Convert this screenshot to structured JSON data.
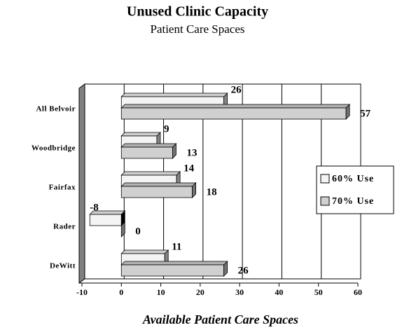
{
  "chart_data": {
    "type": "bar",
    "orientation": "horizontal",
    "style": "3d",
    "title": "Unused Clinic Capacity",
    "subtitle": "Patient Care Spaces",
    "x_label": "Available Patient Care Spaces",
    "categories": [
      "All Belvoir",
      "Woodbridge",
      "Fairfax",
      "Rader",
      "DeWitt"
    ],
    "series": [
      {
        "name": "60% Use",
        "color": "#f4f4f4",
        "values": [
          26,
          9,
          14,
          -8,
          11
        ]
      },
      {
        "name": "70% Use",
        "color": "#d0d0d0",
        "values": [
          57,
          13,
          18,
          0,
          26
        ]
      }
    ],
    "xlim": [
      -10,
      60
    ],
    "xticks": [
      -10,
      0,
      10,
      20,
      30,
      40,
      50,
      60
    ],
    "grid": true,
    "legend": "right"
  }
}
